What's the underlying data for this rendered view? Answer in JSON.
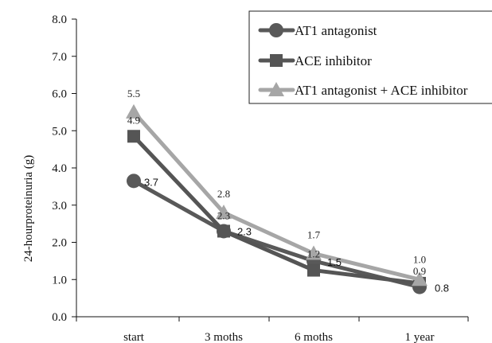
{
  "chart_data": {
    "type": "line",
    "categories": [
      "start",
      "3 moths",
      "6 moths",
      "1 year"
    ],
    "series": [
      {
        "name": "AT1 antagonist",
        "marker": "circle",
        "color": "#595959",
        "values": [
          3.65,
          2.3,
          1.5,
          0.8
        ],
        "labels": [
          "3.7",
          "2.3",
          "1.5",
          "0.8"
        ]
      },
      {
        "name": "ACE inhibitor",
        "marker": "square",
        "color": "#555555",
        "values": [
          4.85,
          2.3,
          1.25,
          0.9
        ],
        "labels": [
          "4.9",
          "2.3",
          "1.2",
          "0.9"
        ]
      },
      {
        "name": "AT1 antagonist + ACE inhibitor",
        "marker": "triangle",
        "color": "#a6a6a6",
        "values": [
          5.5,
          2.8,
          1.7,
          1.0
        ],
        "labels": [
          "5.5",
          "2.8",
          "1.7",
          "1.0"
        ]
      }
    ],
    "title": "",
    "xlabel": "",
    "ylabel": "24-hourproteinuria (g)",
    "ylim": [
      0,
      8
    ],
    "yticks": [
      "0.0",
      "1.0",
      "2.0",
      "3.0",
      "4.0",
      "5.0",
      "6.0",
      "7.0",
      "8.0"
    ],
    "grid": false,
    "legend": "top-right"
  }
}
